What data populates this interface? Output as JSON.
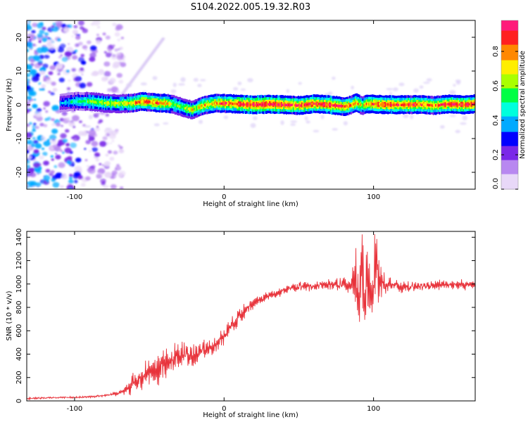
{
  "title": "S104.2022.005.19.32.R03",
  "colorbar": {
    "label": "Normalized spectral amplitude",
    "ticks": [
      "0.0",
      "0.2",
      "0.4",
      "0.6",
      "0.8"
    ],
    "tick_values": [
      0.0,
      0.2,
      0.4,
      0.6,
      0.8
    ],
    "range": [
      0.0,
      0.98
    ]
  },
  "chart_data": [
    {
      "type": "heatmap",
      "xlabel": "Height of straight line (km)",
      "ylabel": "Frequency (Hz)",
      "xlim": [
        -132,
        168
      ],
      "ylim": [
        -25,
        25
      ],
      "xticks": [
        -100,
        0,
        100
      ],
      "xtick_labels": [
        "-100",
        "0",
        "100"
      ],
      "yticks": [
        -20,
        -10,
        0,
        10,
        20
      ],
      "ytick_labels": [
        "-20",
        "-10",
        "0",
        "10",
        "20"
      ],
      "colormap": [
        "#e8d8f8",
        "#b888f0",
        "#7a28e8",
        "#0000ff",
        "#00aaff",
        "#00ffdd",
        "#00ff44",
        "#aaff00",
        "#ffee00",
        "#ff8800",
        "#ff2020",
        "#ff1a7a"
      ],
      "ridge": {
        "x": [
          -110,
          -100,
          -90,
          -80,
          -70,
          -62,
          -55,
          -50,
          -45,
          -40,
          -35,
          -30,
          -25,
          -22,
          -20,
          -15,
          -10,
          -5,
          0,
          10,
          20,
          30,
          40,
          50,
          60,
          70,
          80,
          85,
          88,
          90,
          92,
          95,
          100,
          110,
          120,
          130,
          140,
          150,
          160,
          168
        ],
        "freq": [
          0.5,
          1.0,
          1.0,
          0.5,
          0.3,
          0.5,
          1.0,
          0.8,
          0.5,
          0.5,
          0.2,
          -0.5,
          -1.2,
          -1.5,
          -1.2,
          -0.3,
          0.2,
          0.5,
          0.4,
          0.2,
          0.0,
          0.2,
          0.0,
          -0.2,
          0.3,
          0.0,
          -0.5,
          0.0,
          0.6,
          0.2,
          -0.3,
          0.3,
          0.2,
          0.0,
          0.0,
          0.1,
          -0.2,
          0.2,
          0.0,
          0.3
        ],
        "amplitude": [
          0.35,
          0.45,
          0.55,
          0.6,
          0.6,
          0.7,
          0.8,
          0.75,
          0.8,
          0.75,
          0.6,
          0.55,
          0.6,
          0.65,
          0.6,
          0.7,
          0.7,
          0.75,
          0.8,
          0.85,
          0.9,
          0.9,
          0.85,
          0.8,
          0.85,
          0.85,
          0.8,
          0.7,
          0.75,
          0.7,
          0.6,
          0.75,
          0.8,
          0.85,
          0.8,
          0.8,
          0.75,
          0.85,
          0.85,
          0.8
        ]
      },
      "noise_region_x": [
        -132,
        -95
      ]
    },
    {
      "type": "line",
      "xlabel": "Height of straight line (km)",
      "ylabel": "SNR (10 * v/v)",
      "xlim": [
        -132,
        168
      ],
      "ylim": [
        0,
        1450
      ],
      "xticks": [
        -100,
        0,
        100
      ],
      "xtick_labels": [
        "-100",
        "0",
        "100"
      ],
      "yticks": [
        0,
        200,
        400,
        600,
        800,
        1000,
        1200,
        1400
      ],
      "ytick_labels": [
        "0",
        "200",
        "400",
        "600",
        "800",
        "1000",
        "1200",
        "1400"
      ],
      "color": "#e8333b",
      "series": [
        {
          "x": [
            -132,
            -120,
            -110,
            -100,
            -90,
            -80,
            -75,
            -70,
            -65,
            -60,
            -55,
            -50,
            -45,
            -40,
            -35,
            -30,
            -25,
            -20,
            -15,
            -10,
            -5,
            0,
            5,
            10,
            15,
            20,
            25,
            30,
            35,
            40,
            45,
            50,
            55,
            60,
            65,
            70,
            75,
            80,
            85,
            88,
            90,
            92,
            94,
            96,
            98,
            100,
            102,
            104,
            106,
            108,
            110,
            120,
            130,
            140,
            150,
            160,
            168
          ],
          "y": [
            20,
            25,
            30,
            30,
            35,
            45,
            55,
            70,
            100,
            170,
            200,
            280,
            250,
            320,
            350,
            380,
            400,
            390,
            430,
            460,
            480,
            560,
            640,
            720,
            790,
            840,
            870,
            900,
            920,
            940,
            960,
            975,
            980,
            985,
            990,
            990,
            995,
            990,
            985,
            1100,
            800,
            1200,
            850,
            1100,
            900,
            1000,
            1300,
            950,
            1050,
            980,
            1000,
            970,
            980,
            985,
            990,
            995,
            1000
          ],
          "amplitude_noise": [
            8,
            8,
            8,
            8,
            8,
            8,
            15,
            25,
            60,
            100,
            110,
            130,
            120,
            130,
            120,
            120,
            110,
            100,
            90,
            80,
            75,
            80,
            75,
            70,
            60,
            50,
            45,
            40,
            40,
            40,
            40,
            40,
            45,
            45,
            45,
            50,
            55,
            60,
            80,
            300,
            300,
            300,
            300,
            300,
            250,
            250,
            350,
            200,
            100,
            70,
            60,
            45,
            45,
            45,
            45,
            45,
            45
          ]
        }
      ]
    }
  ]
}
